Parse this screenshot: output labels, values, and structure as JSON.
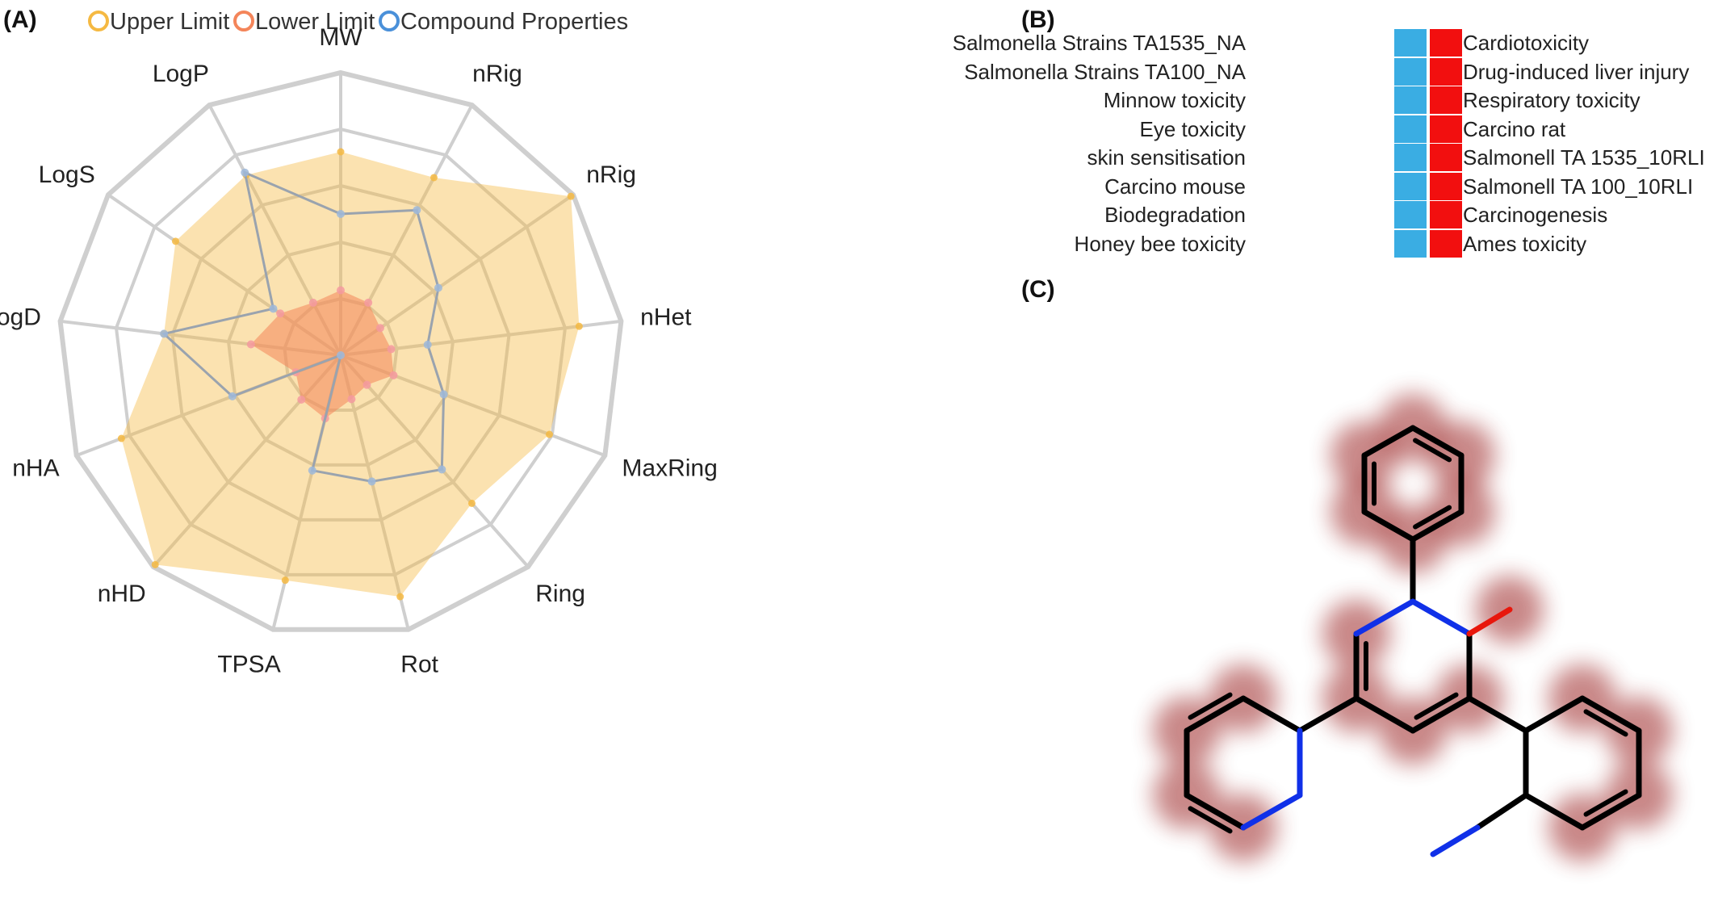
{
  "panel_labels": {
    "a": "(A)",
    "b": "(B)",
    "c": "(C)"
  },
  "colors": {
    "upper": "#F5B942",
    "lower": "#F4855A",
    "compound": "#4A90D9",
    "blue_cell": "#3AADE3",
    "red_cell": "#F20F0F",
    "grid": "#CFCFCF"
  },
  "chart_data": [
    {
      "type": "radar",
      "legend": [
        {
          "name": "Upper Limit",
          "color": "#F5B942"
        },
        {
          "name": "Lower Limit",
          "color": "#F4855A"
        },
        {
          "name": "Compound Properties",
          "color": "#4A90D9"
        }
      ],
      "legend_position": "top",
      "axes": [
        "MW",
        "nRig",
        "nRig",
        "nHet",
        "MaxRing",
        "Ring",
        "Rot",
        "TPSA",
        "nHD",
        "nHA",
        "LogD",
        "LogS",
        "LogP"
      ],
      "rings": 5,
      "range": [
        0,
        1
      ],
      "series": [
        {
          "name": "Upper Limit",
          "values": [
            0.72,
            0.71,
            0.99,
            0.85,
            0.79,
            0.7,
            0.88,
            0.82,
            0.99,
            0.83,
            0.63,
            0.71,
            0.72
          ]
        },
        {
          "name": "Lower Limit",
          "values": [
            0.23,
            0.21,
            0.17,
            0.18,
            0.2,
            0.14,
            0.16,
            0.23,
            0.21,
            0.17,
            0.32,
            0.26,
            0.21
          ]
        },
        {
          "name": "Compound Properties",
          "values": [
            0.5,
            0.58,
            0.42,
            0.31,
            0.39,
            0.54,
            0.46,
            0.42,
            0.0,
            0.41,
            0.63,
            0.29,
            0.73
          ]
        }
      ]
    },
    {
      "type": "heatmap",
      "columns": [
        {
          "labels": [
            "Salmonella Strains TA1535_NA",
            "Salmonella Strains TA100_NA",
            "Minnow toxicity",
            "Eye toxicity",
            "skin sensitisation",
            "Carcino mouse",
            "Biodegradation",
            "Honey bee toxicity"
          ],
          "color": "#3AADE3"
        },
        {
          "labels": [
            "Cardiotoxicity",
            "Drug-induced liver injury",
            "Respiratory toxicity",
            "Carcino rat",
            "Salmonell TA 1535_10RLI",
            "Salmonell TA 100_10RLI",
            "Carcinogenesis",
            "Ames toxicity"
          ],
          "color": "#F20F0F"
        }
      ]
    }
  ]
}
